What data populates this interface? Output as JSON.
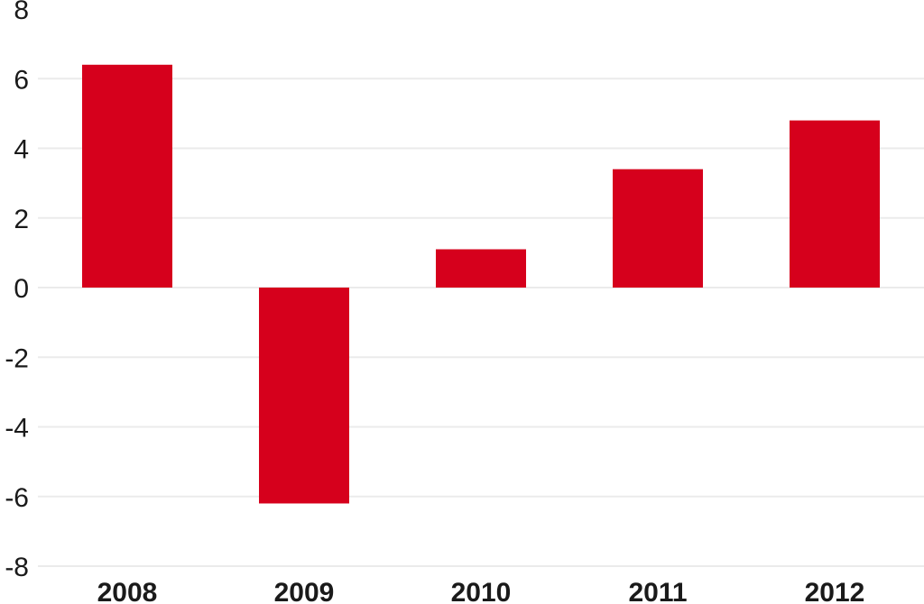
{
  "chart_data": {
    "type": "bar",
    "categories": [
      "2008",
      "2009",
      "2010",
      "2011",
      "2012"
    ],
    "values": [
      6.4,
      -6.2,
      1.1,
      3.4,
      4.8
    ],
    "ylim": [
      -8,
      8
    ],
    "yticks": [
      8,
      6,
      4,
      2,
      0,
      -2,
      -4,
      -6,
      -8
    ],
    "ytick_labels": [
      "8",
      "6",
      "4",
      "2",
      "0",
      "-2",
      "-4",
      "-6",
      "-8"
    ],
    "grid": true,
    "bar_color": "#d6001c",
    "title": "",
    "xlabel": "",
    "ylabel": ""
  }
}
